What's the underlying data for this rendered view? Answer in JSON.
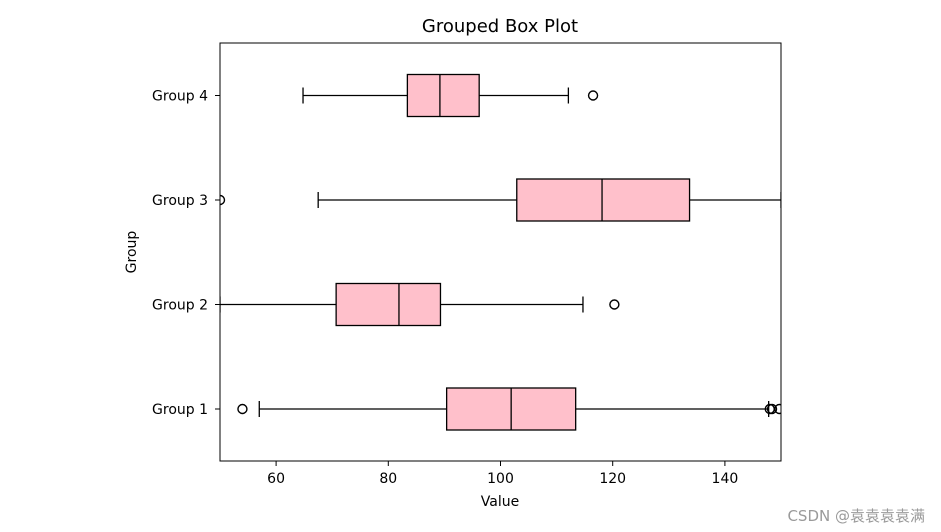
{
  "chart_data": {
    "type": "boxplot",
    "orientation": "horizontal",
    "title": "Grouped Box Plot",
    "xlabel": "Value",
    "ylabel": "Group",
    "xlim": [
      50,
      150
    ],
    "xticks": [
      60,
      80,
      100,
      120,
      140
    ],
    "grid": false,
    "box_color": "#ffc0cb",
    "edge_color": "#000000",
    "groups": [
      {
        "name": "Group 1",
        "whisker_low": 57,
        "q1": 90.4,
        "median": 101.9,
        "q3": 113.4,
        "whisker_high": 147.8,
        "outliers": [
          54,
          148,
          148.4,
          149.7
        ]
      },
      {
        "name": "Group 2",
        "whisker_low": 50,
        "q1": 70.7,
        "median": 81.9,
        "q3": 89.3,
        "whisker_high": 114.7,
        "outliers": [
          120.3
        ]
      },
      {
        "name": "Group 3",
        "whisker_low": 67.5,
        "q1": 102.9,
        "median": 118.1,
        "q3": 133.7,
        "whisker_high": 150,
        "outliers": [
          50
        ]
      },
      {
        "name": "Group 4",
        "whisker_low": 64.8,
        "q1": 83.4,
        "median": 89.2,
        "q3": 96.2,
        "whisker_high": 112.1,
        "outliers": [
          116.5
        ]
      }
    ]
  },
  "watermark": "CSDN @袁袁袁袁满"
}
